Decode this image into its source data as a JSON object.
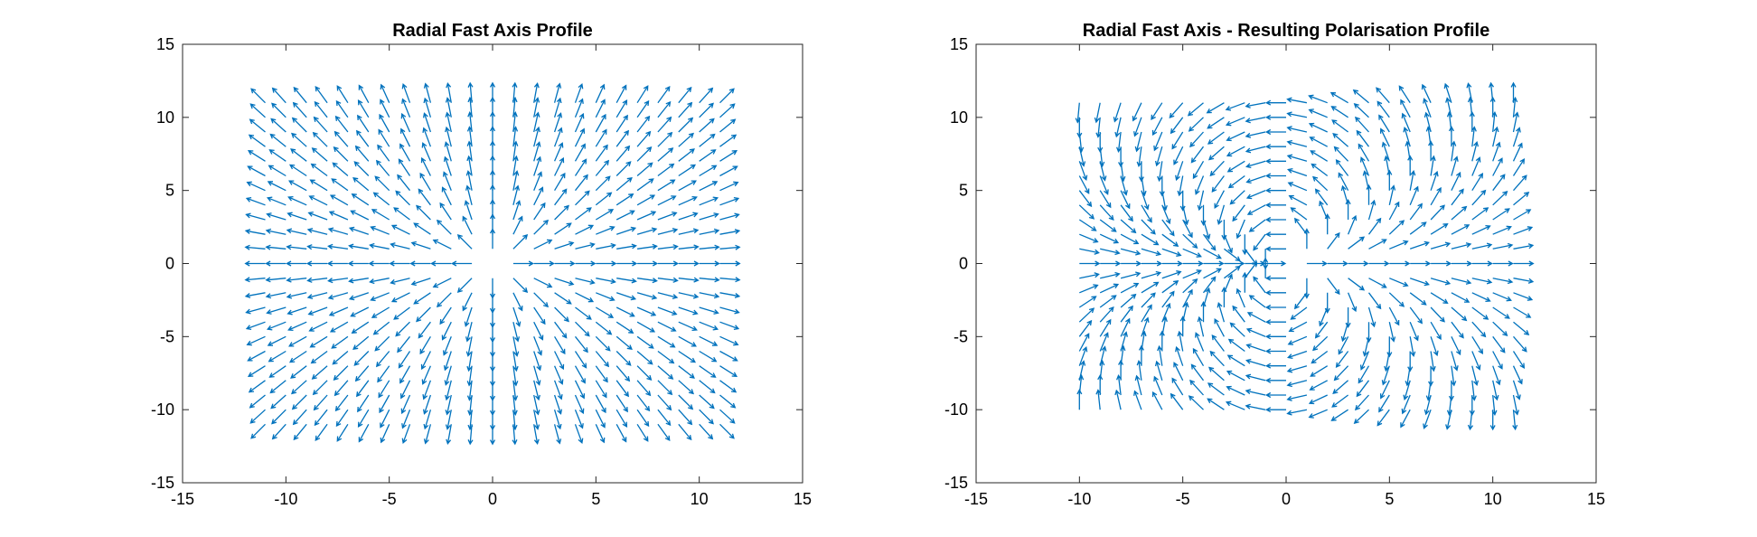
{
  "figure": {
    "background": "#ffffff"
  },
  "chart_data": [
    {
      "type": "quiver",
      "title": "Radial Fast Axis Profile",
      "xlabel": "",
      "ylabel": "",
      "xlim": [
        -15,
        15
      ],
      "ylim": [
        -15,
        15
      ],
      "xticks": [
        -15,
        -10,
        -5,
        0,
        5,
        10,
        15
      ],
      "yticks": [
        -15,
        -10,
        -5,
        0,
        5,
        10,
        15
      ],
      "xtick_labels": [
        "-15",
        "-10",
        "-5",
        "0",
        "5",
        "10",
        "15"
      ],
      "ytick_labels": [
        "-15",
        "-10",
        "-5",
        "0",
        "5",
        "10",
        "15"
      ],
      "grid": false,
      "color": "#0072BD",
      "field": "radial",
      "grid_range": [
        -11,
        11
      ],
      "grid_step": 1,
      "excluded_points": [
        [
          0,
          0
        ]
      ]
    },
    {
      "type": "quiver",
      "title": "Radial Fast Axis - Resulting Polarisation Profile",
      "xlabel": "",
      "ylabel": "",
      "xlim": [
        -15,
        15
      ],
      "ylim": [
        -15,
        15
      ],
      "xticks": [
        -15,
        -10,
        -5,
        0,
        5,
        10,
        15
      ],
      "yticks": [
        -15,
        -10,
        -5,
        0,
        5,
        10,
        15
      ],
      "xtick_labels": [
        "-15",
        "-10",
        "-5",
        "0",
        "5",
        "10",
        "15"
      ],
      "ytick_labels": [
        "-15",
        "-10",
        "-5",
        "0",
        "5",
        "10",
        "15"
      ],
      "grid": false,
      "color": "#0072BD",
      "field": "polarisation (angle = 2 × azimuth)",
      "grid_range": [
        -10,
        11
      ],
      "grid_step": 1,
      "excluded_points": [
        [
          0,
          0
        ]
      ]
    }
  ]
}
